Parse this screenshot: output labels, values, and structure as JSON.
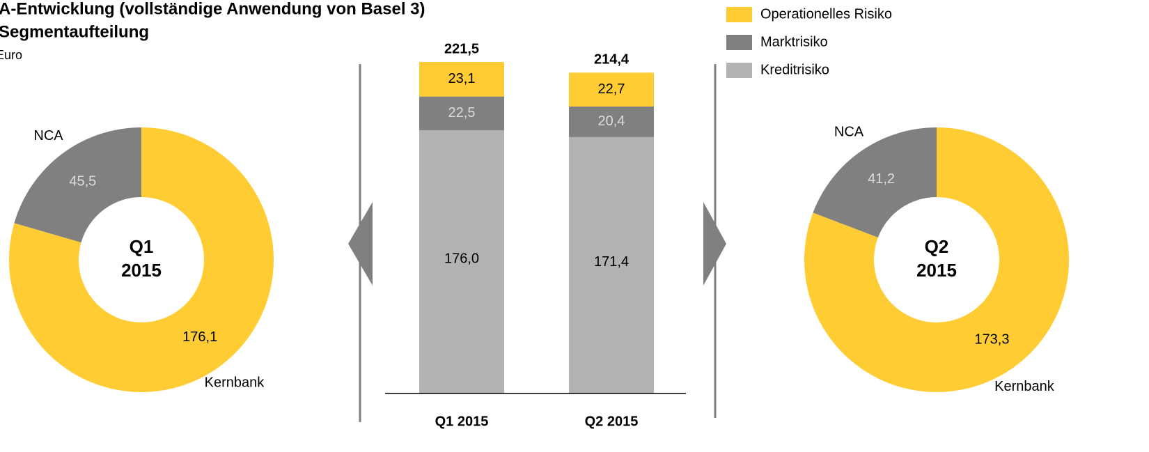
{
  "title_lines": [
    "A-Entwicklung (vollständige Anwendung von Basel 3)",
    "Segmentaufteilung"
  ],
  "unit": "Euro",
  "chart_data": [
    {
      "type": "pie",
      "center_lines": [
        "Q1",
        "2015"
      ],
      "categories": [
        "Kernbank",
        "NCA"
      ],
      "values": [
        176.1,
        45.5
      ],
      "value_labels": [
        "176,1",
        "45,5"
      ],
      "colors": [
        "#ffcc33",
        "#808080"
      ]
    },
    {
      "type": "bar",
      "stacked": true,
      "categories": [
        "Q1 2015",
        "Q2 2015"
      ],
      "ylim": [
        0,
        250
      ],
      "totals": [
        221.5,
        214.4
      ],
      "total_labels": [
        "221,5",
        "214,4"
      ],
      "series": [
        {
          "name": "Kreditrisiko",
          "color": "#b2b2b2",
          "values": [
            176.0,
            171.4
          ],
          "value_labels": [
            "176,0",
            "171,4"
          ]
        },
        {
          "name": "Marktrisiko",
          "color": "#808080",
          "values": [
            22.5,
            20.4
          ],
          "value_labels": [
            "22,5",
            "20,4"
          ]
        },
        {
          "name": "Operationelles Risiko",
          "color": "#ffcc33",
          "values": [
            23.1,
            22.7
          ],
          "value_labels": [
            "23,1",
            "22,7"
          ]
        }
      ]
    },
    {
      "type": "pie",
      "center_lines": [
        "Q2",
        "2015"
      ],
      "categories": [
        "Kernbank",
        "NCA"
      ],
      "values": [
        173.3,
        41.2
      ],
      "value_labels": [
        "173,3",
        "41,2"
      ],
      "colors": [
        "#ffcc33",
        "#808080"
      ]
    }
  ]
}
